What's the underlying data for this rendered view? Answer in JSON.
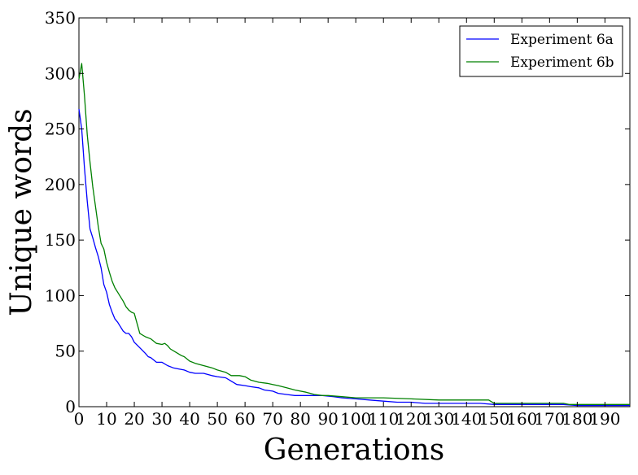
{
  "chart_data": {
    "type": "line",
    "title": "",
    "xlabel": "Generations",
    "ylabel": "Unique words",
    "xlim": [
      0,
      199
    ],
    "ylim": [
      0,
      350
    ],
    "xticks": [
      0,
      10,
      20,
      30,
      40,
      50,
      60,
      70,
      80,
      90,
      100,
      110,
      120,
      130,
      140,
      150,
      160,
      170,
      180,
      190
    ],
    "yticks": [
      0,
      50,
      100,
      150,
      200,
      250,
      300,
      350
    ],
    "grid": false,
    "legend_position": "top-right",
    "series": [
      {
        "name": "Experiment 6a",
        "color": "#0000ff",
        "points": [
          [
            0,
            268
          ],
          [
            1,
            250
          ],
          [
            2,
            215
          ],
          [
            3,
            185
          ],
          [
            4,
            160
          ],
          [
            5,
            152
          ],
          [
            6,
            143
          ],
          [
            7,
            135
          ],
          [
            8,
            125
          ],
          [
            9,
            110
          ],
          [
            10,
            103
          ],
          [
            11,
            92
          ],
          [
            12,
            85
          ],
          [
            13,
            79
          ],
          [
            14,
            76
          ],
          [
            15,
            72
          ],
          [
            16,
            68
          ],
          [
            17,
            66
          ],
          [
            18,
            66
          ],
          [
            19,
            63
          ],
          [
            20,
            58
          ],
          [
            22,
            53
          ],
          [
            24,
            48
          ],
          [
            25,
            45
          ],
          [
            26,
            44
          ],
          [
            28,
            40
          ],
          [
            30,
            40
          ],
          [
            32,
            37
          ],
          [
            34,
            35
          ],
          [
            36,
            34
          ],
          [
            38,
            33
          ],
          [
            40,
            31
          ],
          [
            42,
            30
          ],
          [
            45,
            30
          ],
          [
            48,
            28
          ],
          [
            50,
            27
          ],
          [
            53,
            26
          ],
          [
            55,
            23
          ],
          [
            57,
            20
          ],
          [
            60,
            19
          ],
          [
            62,
            18
          ],
          [
            65,
            17
          ],
          [
            67,
            15
          ],
          [
            70,
            14
          ],
          [
            72,
            12
          ],
          [
            75,
            11
          ],
          [
            78,
            10
          ],
          [
            82,
            10
          ],
          [
            88,
            10
          ],
          [
            92,
            9
          ],
          [
            95,
            8
          ],
          [
            100,
            7
          ],
          [
            105,
            6
          ],
          [
            110,
            5
          ],
          [
            115,
            4
          ],
          [
            120,
            4
          ],
          [
            125,
            3
          ],
          [
            130,
            3
          ],
          [
            140,
            3
          ],
          [
            145,
            3
          ],
          [
            150,
            2
          ],
          [
            155,
            2
          ],
          [
            165,
            2
          ],
          [
            175,
            2
          ],
          [
            180,
            1
          ],
          [
            190,
            1
          ],
          [
            199,
            1
          ]
        ]
      },
      {
        "name": "Experiment 6b",
        "color": "#008000",
        "points": [
          [
            0,
            295
          ],
          [
            1,
            309
          ],
          [
            2,
            280
          ],
          [
            3,
            245
          ],
          [
            4,
            220
          ],
          [
            5,
            198
          ],
          [
            6,
            180
          ],
          [
            7,
            162
          ],
          [
            8,
            147
          ],
          [
            9,
            142
          ],
          [
            10,
            130
          ],
          [
            11,
            121
          ],
          [
            12,
            113
          ],
          [
            13,
            107
          ],
          [
            14,
            103
          ],
          [
            15,
            99
          ],
          [
            16,
            95
          ],
          [
            17,
            90
          ],
          [
            18,
            87
          ],
          [
            19,
            85
          ],
          [
            20,
            84
          ],
          [
            21,
            75
          ],
          [
            22,
            66
          ],
          [
            24,
            63
          ],
          [
            26,
            61
          ],
          [
            28,
            57
          ],
          [
            30,
            56
          ],
          [
            31,
            57
          ],
          [
            32,
            55
          ],
          [
            33,
            52
          ],
          [
            35,
            49
          ],
          [
            37,
            46
          ],
          [
            38,
            45
          ],
          [
            40,
            41
          ],
          [
            42,
            39
          ],
          [
            45,
            37
          ],
          [
            48,
            35
          ],
          [
            50,
            33
          ],
          [
            53,
            31
          ],
          [
            55,
            28
          ],
          [
            58,
            28
          ],
          [
            60,
            27
          ],
          [
            62,
            24
          ],
          [
            65,
            22
          ],
          [
            68,
            21
          ],
          [
            70,
            20
          ],
          [
            72,
            19
          ],
          [
            75,
            17
          ],
          [
            78,
            15
          ],
          [
            82,
            13
          ],
          [
            85,
            11
          ],
          [
            88,
            10
          ],
          [
            90,
            10
          ],
          [
            95,
            9
          ],
          [
            100,
            8
          ],
          [
            110,
            8
          ],
          [
            120,
            7
          ],
          [
            130,
            6
          ],
          [
            140,
            6
          ],
          [
            148,
            6
          ],
          [
            150,
            3
          ],
          [
            160,
            3
          ],
          [
            170,
            3
          ],
          [
            175,
            3
          ],
          [
            177,
            2
          ],
          [
            190,
            2
          ],
          [
            199,
            2
          ]
        ]
      }
    ]
  }
}
